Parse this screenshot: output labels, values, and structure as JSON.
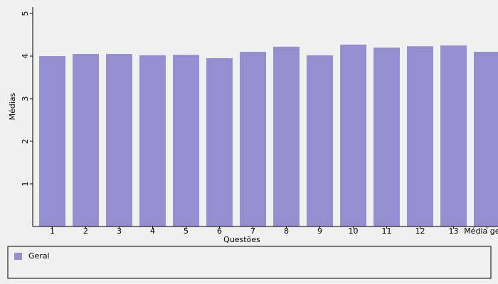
{
  "chart_data": {
    "type": "bar",
    "x_label": "Questões",
    "y_label": "Médias",
    "categories": [
      "1",
      "2",
      "3",
      "4",
      "5",
      "6",
      "7",
      "8",
      "9",
      "10",
      "11",
      "12",
      "13",
      "Média geral"
    ],
    "series": [
      {
        "name": "Geral",
        "color": "#958fcf",
        "values": [
          4.0,
          4.05,
          4.05,
          4.02,
          4.03,
          3.95,
          4.1,
          4.22,
          4.02,
          4.27,
          4.2,
          4.23,
          4.25,
          4.1
        ]
      }
    ],
    "ylim": [
      0,
      5
    ],
    "yticks": [
      1,
      2,
      3,
      4,
      5
    ],
    "grid": false
  }
}
